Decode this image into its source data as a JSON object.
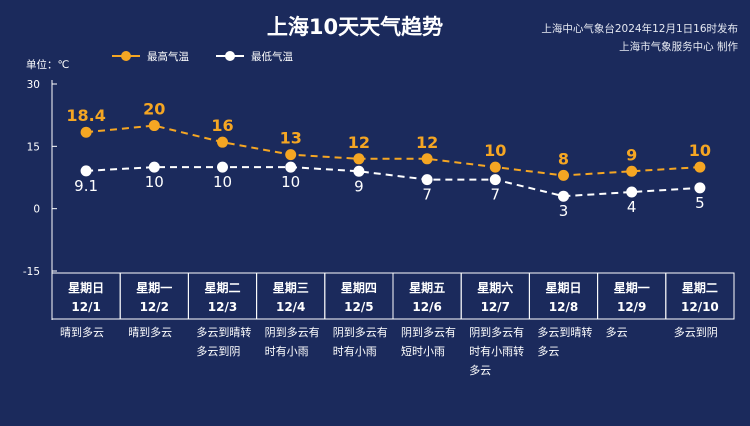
{
  "header": {
    "title": "上海10天天气趋势",
    "source_line1": "上海中心气象台2024年12月1日16时发布",
    "source_line2": "上海市气象服务中心 制作"
  },
  "colors": {
    "background": "#1b2a5c",
    "high": "#f5a623",
    "low": "#ffffff",
    "grid": "#ffffff"
  },
  "chart_data": {
    "type": "line",
    "title": "上海10天天气趋势",
    "unit_label": "单位：℃",
    "ylim": [
      -15,
      30
    ],
    "yticks": [
      30,
      15,
      0,
      -15
    ],
    "grid": false,
    "legend_position": "top-left",
    "days": [
      "星期日",
      "星期一",
      "星期二",
      "星期三",
      "星期四",
      "星期五",
      "星期六",
      "星期日",
      "星期一",
      "星期二"
    ],
    "dates": [
      "12/1",
      "12/2",
      "12/3",
      "12/4",
      "12/5",
      "12/6",
      "12/7",
      "12/8",
      "12/9",
      "12/10"
    ],
    "conditions": [
      [
        "晴到多云"
      ],
      [
        "晴到多云"
      ],
      [
        "多云到晴转",
        "多云到阴"
      ],
      [
        "阴到多云有",
        "时有小雨"
      ],
      [
        "阴到多云有",
        "时有小雨"
      ],
      [
        "阴到多云有",
        "短时小雨"
      ],
      [
        "阴到多云有",
        "时有小雨转",
        "多云"
      ],
      [
        "多云到晴转",
        "多云"
      ],
      [
        "多云"
      ],
      [
        "多云到阴"
      ]
    ],
    "series": [
      {
        "name": "最高气温",
        "values": [
          18.4,
          20,
          16,
          13,
          12,
          12,
          10,
          8,
          9,
          10
        ],
        "labels": [
          "18.4",
          "20",
          "16",
          "13",
          "12",
          "12",
          "10",
          "8",
          "9",
          "10"
        ]
      },
      {
        "name": "最低气温",
        "values": [
          9.1,
          10,
          10,
          10,
          9,
          7,
          7,
          3,
          4,
          5
        ],
        "labels": [
          "9.1",
          "10",
          "10",
          "10",
          "9",
          "7",
          "7",
          "3",
          "4",
          "5"
        ]
      }
    ]
  }
}
